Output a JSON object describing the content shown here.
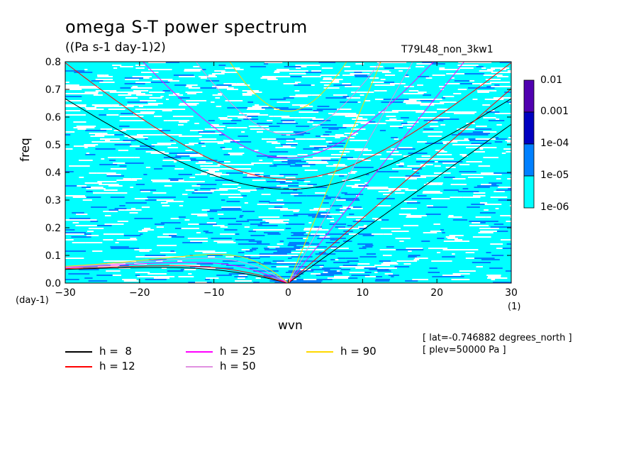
{
  "title": "omega S-T power spectrum",
  "units": "((Pa s-1 day-1)2)",
  "run_name": "T79L48_non_3kw1",
  "meta": {
    "lat": "[ lat=-0.746882 degrees_north ]",
    "plev": "[ plev=50000 Pa ]"
  },
  "colors": {
    "background_fill": "#00ffff",
    "level_1": "#0080ff",
    "level_2": "#0000c0",
    "level_3": "#5000b0",
    "gaps": "#ffffff"
  },
  "colorbar": {
    "labels": [
      "0.01",
      "0.001",
      "1e-04",
      "1e-05",
      "1e-06"
    ]
  },
  "legend": [
    {
      "label": "h =  8",
      "color": "#000000"
    },
    {
      "label": "h = 12",
      "color": "#ff0000"
    },
    {
      "label": "h = 25",
      "color": "#ff00ff"
    },
    {
      "label": "h = 50",
      "color": "#e090e0"
    },
    {
      "label": "h = 90",
      "color": "#ffd800"
    }
  ],
  "chart_data": {
    "type": "heatmap",
    "title": "omega S-T power spectrum",
    "subtitle": "((Pa s-1 day-1)2)",
    "xlabel": "wvn",
    "xunit": "(1)",
    "ylabel": "freq",
    "yunit": "(day-1)",
    "xlim": [
      -30,
      30
    ],
    "ylim": [
      0,
      0.8
    ],
    "xticks": [
      -30,
      -20,
      -10,
      0,
      10,
      20,
      30
    ],
    "yticks": [
      0.0,
      0.1,
      0.2,
      0.3,
      0.4,
      0.5,
      0.6,
      0.7,
      0.8
    ],
    "color_scale": "log",
    "color_levels": [
      1e-06,
      1e-05,
      0.0001,
      0.001,
      0.01
    ],
    "equivalent_depths_m": [
      8,
      12,
      25,
      50,
      90
    ],
    "dispersion_curves": "Kelvin, inertio-gravity (n=1) and Rossby (n=1) curves for each equivalent depth",
    "legend_position": "bottom-left"
  }
}
